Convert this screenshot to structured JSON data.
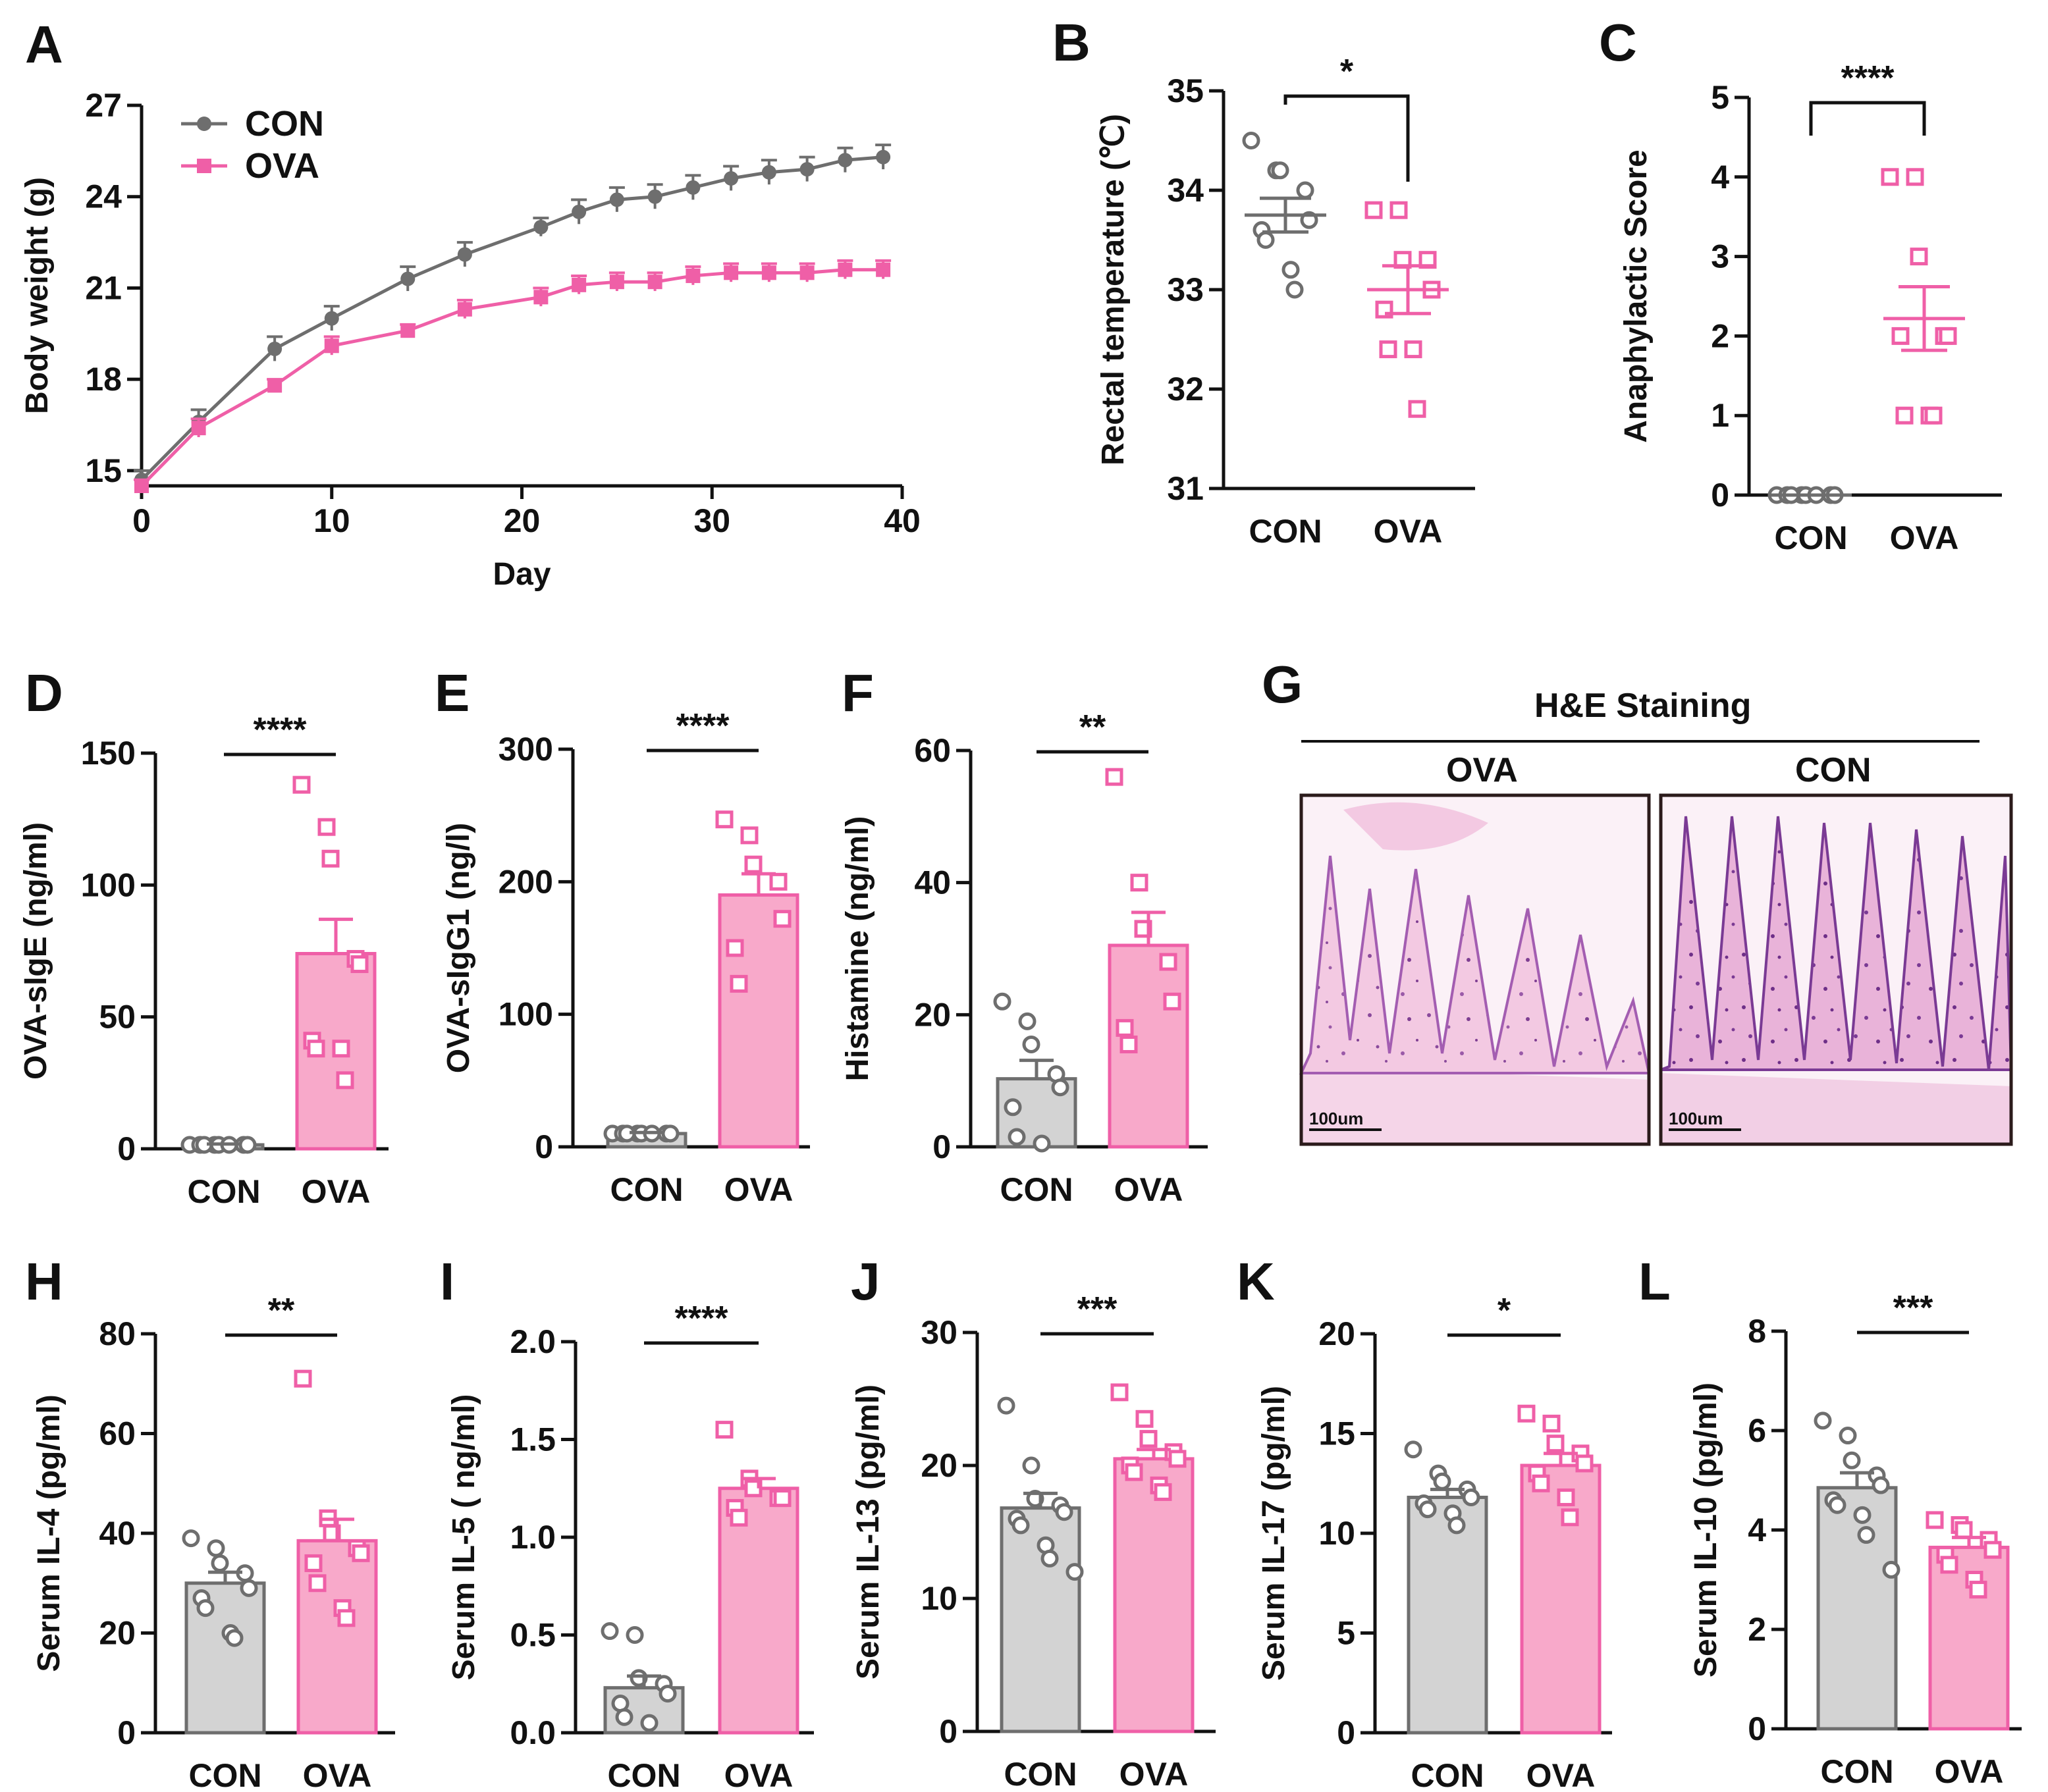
{
  "colors": {
    "con": "#6e6e6e",
    "ova": "#ef5fa7",
    "con_fill": "#d3d3d3",
    "ova_fill": "#f8a9ca",
    "axis": "#111111"
  },
  "chart_data": [
    {
      "panel": "A",
      "type": "line",
      "xlabel": "Day",
      "ylabel": "Body weight (g)",
      "xlim": [
        0,
        40
      ],
      "ylim": [
        14.5,
        27
      ],
      "xticks": [
        0,
        10,
        20,
        30,
        40
      ],
      "yticks": [
        15,
        18,
        21,
        24,
        27
      ],
      "legend_position": "top-left",
      "x": [
        0,
        3,
        7,
        10,
        14,
        17,
        21,
        23,
        25,
        27,
        29,
        31,
        33,
        35,
        37,
        39
      ],
      "series": [
        {
          "name": "CON",
          "group": "con",
          "values": [
            14.7,
            16.6,
            19.0,
            20.0,
            21.3,
            22.1,
            23.0,
            23.5,
            23.9,
            24.0,
            24.3,
            24.6,
            24.8,
            24.9,
            25.2,
            25.3
          ],
          "sem": [
            0.3,
            0.4,
            0.4,
            0.4,
            0.4,
            0.4,
            0.3,
            0.4,
            0.4,
            0.4,
            0.4,
            0.4,
            0.4,
            0.4,
            0.4,
            0.4
          ]
        },
        {
          "name": "OVA",
          "group": "ova",
          "values": [
            14.5,
            16.4,
            17.8,
            19.1,
            19.6,
            20.3,
            20.7,
            21.1,
            21.2,
            21.2,
            21.4,
            21.5,
            21.5,
            21.5,
            21.6,
            21.6
          ],
          "sem": [
            0.2,
            0.3,
            0.2,
            0.3,
            0.2,
            0.3,
            0.3,
            0.3,
            0.3,
            0.3,
            0.3,
            0.3,
            0.3,
            0.3,
            0.3,
            0.3
          ]
        }
      ]
    },
    {
      "panel": "B",
      "type": "scatter",
      "ylabel": "Rectal temperature (℃)",
      "ylim": [
        31,
        35
      ],
      "yticks": [
        31,
        32,
        33,
        34,
        35
      ],
      "categories": [
        "CON",
        "OVA"
      ],
      "significance": "*",
      "series": [
        {
          "name": "CON",
          "group": "con",
          "mean": 33.75,
          "sem": 0.17,
          "points": [
            34.5,
            34.2,
            34.2,
            34.0,
            33.7,
            33.6,
            33.5,
            33.2,
            33.0
          ],
          "bar": false
        },
        {
          "name": "OVA",
          "group": "ova",
          "mean": 33.0,
          "sem": 0.24,
          "points": [
            33.8,
            33.8,
            33.3,
            33.3,
            33.0,
            32.8,
            32.4,
            32.4,
            31.8
          ],
          "bar": false
        }
      ]
    },
    {
      "panel": "C",
      "type": "scatter",
      "ylabel": "Anaphylactic Score",
      "ylim": [
        0,
        5
      ],
      "yticks": [
        0,
        1,
        2,
        3,
        4,
        5
      ],
      "categories": [
        "CON",
        "OVA"
      ],
      "significance": "****",
      "series": [
        {
          "name": "CON",
          "group": "con",
          "mean": 0,
          "sem": 0,
          "points": [
            0,
            0,
            0,
            0,
            0,
            0,
            0,
            0
          ],
          "bar": false
        },
        {
          "name": "OVA",
          "group": "ova",
          "mean": 2.22,
          "sem": 0.4,
          "points": [
            4,
            4,
            3,
            2,
            2,
            2,
            1,
            1,
            1
          ],
          "bar": false
        }
      ]
    },
    {
      "panel": "D",
      "type": "bar",
      "ylabel": "OVA-sIgE (ng/ml)",
      "ylim": [
        0,
        150
      ],
      "yticks": [
        0,
        50,
        100,
        150
      ],
      "categories": [
        "CON",
        "OVA"
      ],
      "significance": "****",
      "series": [
        {
          "name": "CON",
          "group": "con",
          "mean": 1.5,
          "sem": 0.3,
          "points": [
            1.5,
            1.5,
            1.5,
            1.5,
            1.5,
            1.5,
            1.5,
            1.5
          ],
          "bar": true
        },
        {
          "name": "OVA",
          "group": "ova",
          "mean": 74,
          "sem": 13,
          "points": [
            138,
            122,
            110,
            72,
            70,
            41,
            38,
            38,
            26
          ],
          "bar": true
        }
      ]
    },
    {
      "panel": "E",
      "type": "bar",
      "ylabel": "OVA-sIgG1 (ng/l)",
      "ylim": [
        0,
        300
      ],
      "yticks": [
        0,
        100,
        200,
        300
      ],
      "categories": [
        "CON",
        "OVA"
      ],
      "significance": "****",
      "series": [
        {
          "name": "CON",
          "group": "con",
          "mean": 10,
          "sem": 0.8,
          "points": [
            10,
            10,
            10,
            10,
            10,
            10,
            10,
            10
          ],
          "bar": true
        },
        {
          "name": "OVA",
          "group": "ova",
          "mean": 190,
          "sem": 16,
          "points": [
            247,
            235,
            213,
            200,
            172,
            150,
            123
          ],
          "bar": true
        }
      ]
    },
    {
      "panel": "F",
      "type": "bar",
      "ylabel": "Histamine (ng/ml)",
      "ylim": [
        0,
        60
      ],
      "yticks": [
        0,
        20,
        40,
        60
      ],
      "categories": [
        "CON",
        "OVA"
      ],
      "significance": "**",
      "series": [
        {
          "name": "CON",
          "group": "con",
          "mean": 10.3,
          "sem": 2.8,
          "points": [
            22,
            19,
            15.5,
            11,
            9,
            6,
            1.5,
            0.5
          ],
          "bar": true
        },
        {
          "name": "OVA",
          "group": "ova",
          "mean": 30.5,
          "sem": 5,
          "points": [
            56,
            40,
            33,
            28,
            22,
            18,
            15.5
          ],
          "bar": true
        }
      ]
    },
    {
      "panel": "H",
      "type": "bar",
      "ylabel": "Serum IL-4 (pg/ml)",
      "ylim": [
        0,
        80
      ],
      "yticks": [
        0,
        20,
        40,
        60,
        80
      ],
      "categories": [
        "CON",
        "OVA"
      ],
      "significance": "**",
      "series": [
        {
          "name": "CON",
          "group": "con",
          "mean": 30,
          "sem": 2.2,
          "points": [
            39,
            37,
            34,
            32,
            29,
            27,
            25,
            20,
            19
          ],
          "bar": true
        },
        {
          "name": "OVA",
          "group": "ova",
          "mean": 38.5,
          "sem": 4.3,
          "points": [
            71,
            43,
            40,
            37,
            36,
            34,
            30,
            25,
            23
          ],
          "bar": true
        }
      ]
    },
    {
      "panel": "I",
      "type": "bar",
      "ylabel": "Serum IL-5 ( ng/ml)",
      "ylim": [
        0,
        2.0
      ],
      "yticks": [
        0,
        0.5,
        1.0,
        1.5,
        2.0
      ],
      "ytick_labels": [
        "0.0",
        "0.5",
        "1.0",
        "1.5",
        "2.0"
      ],
      "categories": [
        "CON",
        "OVA"
      ],
      "significance": "****",
      "series": [
        {
          "name": "CON",
          "group": "con",
          "mean": 0.23,
          "sem": 0.06,
          "points": [
            0.52,
            0.5,
            0.28,
            0.25,
            0.2,
            0.15,
            0.08,
            0.05
          ],
          "bar": true
        },
        {
          "name": "OVA",
          "group": "ova",
          "mean": 1.25,
          "sem": 0.05,
          "points": [
            1.55,
            1.3,
            1.25,
            1.2,
            1.2,
            1.15,
            1.1
          ],
          "bar": true
        }
      ]
    },
    {
      "panel": "J",
      "type": "bar",
      "ylabel": "Serum IL-13 (pg/ml)",
      "ylim": [
        0,
        30
      ],
      "yticks": [
        0,
        10,
        20,
        30
      ],
      "categories": [
        "CON",
        "OVA"
      ],
      "significance": "***",
      "series": [
        {
          "name": "CON",
          "group": "con",
          "mean": 16.8,
          "sem": 1.1,
          "points": [
            24.5,
            20,
            17.5,
            17,
            16.5,
            16,
            15.5,
            14,
            13,
            12
          ],
          "bar": true
        },
        {
          "name": "OVA",
          "group": "ova",
          "mean": 20.5,
          "sem": 0.7,
          "points": [
            25.5,
            23.5,
            22,
            21,
            20.5,
            20,
            19.5,
            18.5,
            18
          ],
          "bar": true
        }
      ]
    },
    {
      "panel": "K",
      "type": "bar",
      "ylabel": "Serum IL-17 (pg/ml)",
      "ylim": [
        0,
        20
      ],
      "yticks": [
        0,
        5,
        10,
        15,
        20
      ],
      "categories": [
        "CON",
        "OVA"
      ],
      "significance": "*",
      "series": [
        {
          "name": "CON",
          "group": "con",
          "mean": 11.8,
          "sem": 0.4,
          "points": [
            14.2,
            13,
            12.6,
            12.2,
            11.8,
            11.5,
            11.2,
            11,
            10.4
          ],
          "bar": true
        },
        {
          "name": "OVA",
          "group": "ova",
          "mean": 13.4,
          "sem": 0.6,
          "points": [
            16,
            15.5,
            14.5,
            14,
            13.5,
            13,
            12.5,
            11.8,
            10.8
          ],
          "bar": true
        }
      ]
    },
    {
      "panel": "L",
      "type": "bar",
      "ylabel": "Serum IL-10 (pg/ml)",
      "ylim": [
        0,
        8
      ],
      "yticks": [
        0,
        2,
        4,
        6,
        8
      ],
      "categories": [
        "CON",
        "OVA"
      ],
      "significance": "***",
      "series": [
        {
          "name": "CON",
          "group": "con",
          "mean": 4.85,
          "sem": 0.3,
          "points": [
            6.2,
            5.9,
            5.4,
            5.1,
            4.9,
            4.6,
            4.5,
            4.3,
            3.9,
            3.2
          ],
          "bar": true
        },
        {
          "name": "OVA",
          "group": "ova",
          "mean": 3.65,
          "sem": 0.2,
          "points": [
            4.2,
            4.1,
            4.0,
            3.8,
            3.6,
            3.5,
            3.3,
            3.0,
            2.8
          ],
          "bar": true
        }
      ]
    }
  ],
  "he_panel": {
    "letter": "G",
    "title": "H&E Staining",
    "left_label": "OVA",
    "right_label": "CON",
    "scale_bar": "100um"
  }
}
